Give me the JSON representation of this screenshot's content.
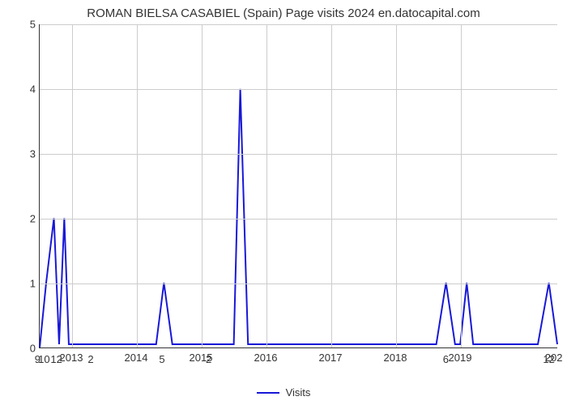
{
  "chart": {
    "type": "line",
    "title": "ROMAN BIELSA CASABIEL (Spain) Page visits 2024 en.datocapital.com",
    "title_fontsize": 15,
    "title_color": "#333333",
    "background_color": "#ffffff",
    "grid_color": "#cccccc",
    "axis_color": "#333333",
    "line_color": "#1818d8",
    "line_width": 2,
    "ylim": [
      0,
      5
    ],
    "ytick_step": 1,
    "yticks": [
      0,
      1,
      2,
      3,
      4,
      5
    ],
    "xlim": [
      2012.5,
      2020.5
    ],
    "xticks": [
      2013,
      2014,
      2015,
      2016,
      2017,
      2018,
      2019
    ],
    "xtick_right_label": "202",
    "x_left_overlap_labels": [
      "9",
      "10",
      "12"
    ],
    "x_left_overlap_x": [
      2012.48,
      2012.58,
      2012.77
    ],
    "point_labels": [
      {
        "x": 2013.3,
        "label": "2"
      },
      {
        "x": 2014.4,
        "label": "5"
      },
      {
        "x": 2015.12,
        "label": "2"
      },
      {
        "x": 2018.78,
        "label": "6"
      },
      {
        "x": 2020.37,
        "label": "12"
      }
    ],
    "series": {
      "name": "Visits",
      "x": [
        2012.5,
        2012.6,
        2012.72,
        2012.8,
        2012.88,
        2012.95,
        2013.05,
        2013.12,
        2013.2,
        2013.3,
        2013.4,
        2013.5,
        2014.3,
        2014.42,
        2014.55,
        2015.0,
        2015.12,
        2015.25,
        2015.5,
        2015.6,
        2015.72,
        2018.63,
        2018.78,
        2018.92,
        2019.0,
        2019.1,
        2019.2,
        2020.2,
        2020.37,
        2020.5
      ],
      "y": [
        0.0,
        1.0,
        2.0,
        0.05,
        2.0,
        0.05,
        0.05,
        0.05,
        0.05,
        0.05,
        0.05,
        0.05,
        0.05,
        1.0,
        0.05,
        0.05,
        0.05,
        0.05,
        0.05,
        4.0,
        0.05,
        0.05,
        1.0,
        0.05,
        0.05,
        1.0,
        0.05,
        0.05,
        1.0,
        0.05
      ]
    },
    "legend": {
      "label": "Visits",
      "position": "bottom",
      "color": "#1818d8",
      "fontsize": 13
    }
  }
}
